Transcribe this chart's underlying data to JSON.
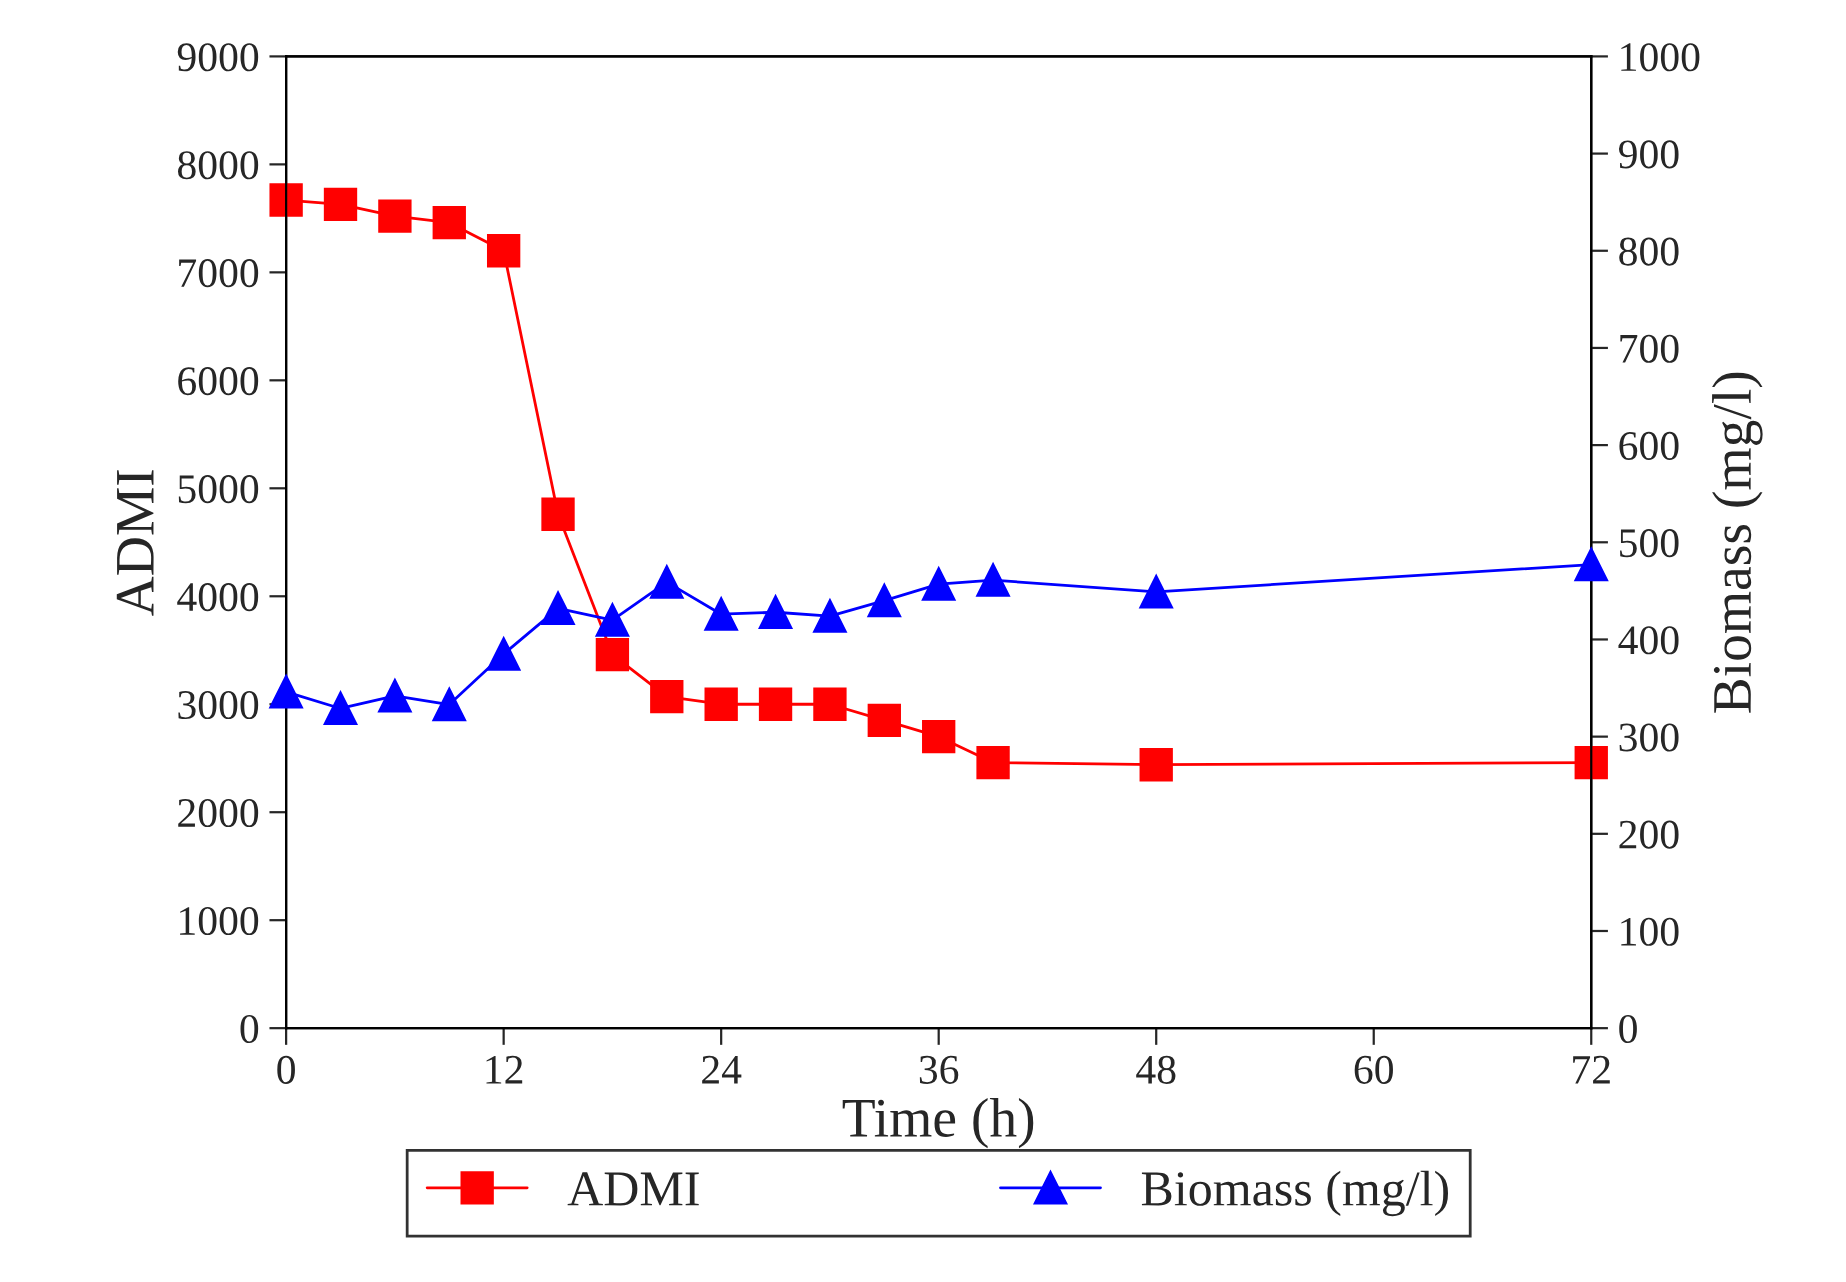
{
  "chart_data": {
    "type": "line",
    "xlabel": "Time (h)",
    "ylabel": "ADMI",
    "y2label": "Biomass (mg/l)",
    "x": [
      0,
      3,
      6,
      9,
      12,
      15,
      18,
      21,
      24,
      27,
      30,
      33,
      36,
      39,
      48,
      72
    ],
    "series": [
      {
        "name": "ADMI",
        "color": "#ff0000",
        "marker": "square",
        "values": [
          7670,
          7630,
          7520,
          7460,
          7200,
          4760,
          3460,
          3070,
          3000,
          3000,
          3000,
          2850,
          2700,
          2460,
          2440,
          2460
        ]
      },
      {
        "name": "Biomass (mg/l)",
        "color": "#0000ff",
        "marker": "triangle",
        "axis": "y2",
        "values": [
          346,
          329,
          342,
          333,
          385,
          432,
          420,
          459,
          426,
          428,
          424,
          440,
          457,
          461,
          449,
          477
        ]
      }
    ],
    "xlim": [
      0,
      72
    ],
    "xticks": [
      0,
      12,
      24,
      36,
      48,
      60,
      72
    ],
    "ylim": [
      0,
      9000
    ],
    "yticks": [
      0,
      1000,
      2000,
      3000,
      4000,
      5000,
      6000,
      7000,
      8000,
      9000
    ],
    "y2lim": [
      0,
      1000
    ],
    "y2ticks": [
      0,
      100,
      200,
      300,
      400,
      500,
      600,
      700,
      800,
      900,
      1000
    ],
    "grid": false,
    "legend": "bottom",
    "line_style": "solid"
  }
}
